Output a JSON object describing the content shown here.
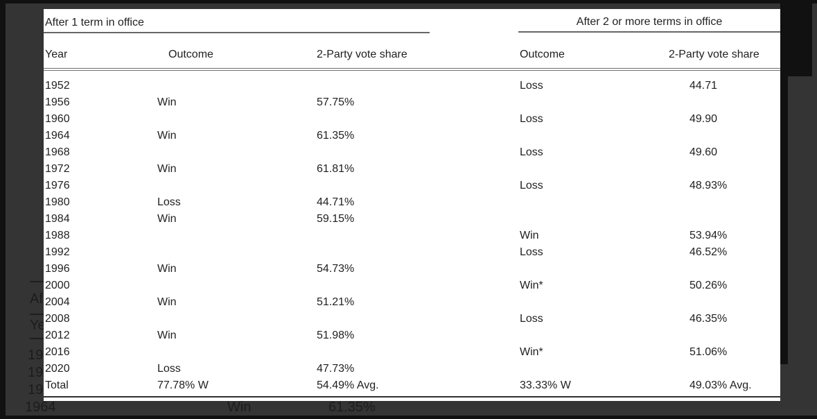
{
  "colors": {
    "backdrop": "#343434",
    "frame_strip": "#111111",
    "panel": "#ffffff",
    "table_text": "#1f1f1f",
    "rule": "#6e6e6e",
    "dimmed_text": "#1c1c1c"
  },
  "backdrop": {
    "fragments": {
      "after_partial": "Af",
      "year_partial": "Ye",
      "year19_1": "19",
      "year19_2": "19",
      "year19_3": "19"
    },
    "bottom_row": {
      "year": "1964",
      "outcome": "Win",
      "share": "61.35%"
    }
  },
  "table": {
    "left_title": "After 1 term in office",
    "right_title": "After 2 or more terms in office",
    "headers": {
      "year": "Year",
      "outcome_left": "Outcome",
      "share_left": "2-Party vote share",
      "outcome_right": "Outcome",
      "share_right": "2-Party vote share"
    },
    "rows": [
      {
        "year": "1952",
        "outcome_left": "",
        "share_left": "",
        "outcome_right": "Loss",
        "share_right": "44.71"
      },
      {
        "year": "1956",
        "outcome_left": "Win",
        "share_left": "57.75%",
        "outcome_right": "",
        "share_right": ""
      },
      {
        "year": "1960",
        "outcome_left": "",
        "share_left": "",
        "outcome_right": "Loss",
        "share_right": "49.90"
      },
      {
        "year": "1964",
        "outcome_left": "Win",
        "share_left": "61.35%",
        "outcome_right": "",
        "share_right": ""
      },
      {
        "year": "1968",
        "outcome_left": "",
        "share_left": "",
        "outcome_right": "Loss",
        "share_right": "49.60"
      },
      {
        "year": "1972",
        "outcome_left": "Win",
        "share_left": "61.81%",
        "outcome_right": "",
        "share_right": ""
      },
      {
        "year": "1976",
        "outcome_left": "",
        "share_left": "",
        "outcome_right": "Loss",
        "share_right": "48.93%"
      },
      {
        "year": "1980",
        "outcome_left": "Loss",
        "share_left": "44.71%",
        "outcome_right": "",
        "share_right": ""
      },
      {
        "year": "1984",
        "outcome_left": "Win",
        "share_left": "59.15%",
        "outcome_right": "",
        "share_right": ""
      },
      {
        "year": "1988",
        "outcome_left": "",
        "share_left": "",
        "outcome_right": "Win",
        "share_right": "53.94%"
      },
      {
        "year": "1992",
        "outcome_left": "",
        "share_left": "",
        "outcome_right": "Loss",
        "share_right": "46.52%"
      },
      {
        "year": "1996",
        "outcome_left": "Win",
        "share_left": "54.73%",
        "outcome_right": "",
        "share_right": ""
      },
      {
        "year": "2000",
        "outcome_left": "",
        "share_left": "",
        "outcome_right": "Win*",
        "share_right": "50.26%"
      },
      {
        "year": "2004",
        "outcome_left": "Win",
        "share_left": "51.21%",
        "outcome_right": "",
        "share_right": ""
      },
      {
        "year": "2008",
        "outcome_left": "",
        "share_left": "",
        "outcome_right": "Loss",
        "share_right": "46.35%"
      },
      {
        "year": "2012",
        "outcome_left": "Win",
        "share_left": "51.98%",
        "outcome_right": "",
        "share_right": ""
      },
      {
        "year": "2016",
        "outcome_left": "",
        "share_left": "",
        "outcome_right": "Win*",
        "share_right": "51.06%"
      },
      {
        "year": "2020",
        "outcome_left": "Loss",
        "share_left": "47.73%",
        "outcome_right": "",
        "share_right": ""
      },
      {
        "year": "Total",
        "outcome_left": "77.78% W",
        "share_left": "54.49% Avg.",
        "outcome_right": "33.33% W",
        "share_right": "49.03% Avg."
      }
    ]
  }
}
